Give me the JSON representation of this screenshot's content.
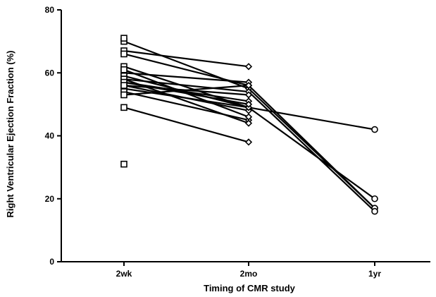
{
  "chart_data": {
    "type": "line",
    "title": "",
    "xlabel": "Timing of CMR study",
    "ylabel": "Right Ventricular Ejection Fraction (%)",
    "categories": [
      "2wk",
      "2mo",
      "1yr"
    ],
    "markers": [
      "square",
      "diamond",
      "circle"
    ],
    "ylim": [
      0,
      80
    ],
    "yticks": [
      0,
      20,
      40,
      60,
      80
    ],
    "grid": false,
    "legend": "none",
    "series": [
      {
        "values": [
          70,
          55,
          17
        ]
      },
      {
        "values": [
          67,
          62,
          null
        ]
      },
      {
        "values": [
          66,
          56,
          17
        ]
      },
      {
        "values": [
          62,
          49,
          null
        ]
      },
      {
        "values": [
          60,
          57,
          null
        ]
      },
      {
        "values": [
          59,
          49,
          20
        ]
      },
      {
        "values": [
          58,
          54,
          16
        ]
      },
      {
        "values": [
          57,
          51,
          null
        ]
      },
      {
        "values": [
          56,
          48,
          null
        ]
      },
      {
        "values": [
          55,
          49,
          42
        ]
      },
      {
        "values": [
          54,
          45,
          null
        ]
      },
      {
        "values": [
          53,
          56,
          null
        ]
      },
      {
        "values": [
          49,
          38,
          null
        ]
      },
      {
        "values": [
          71,
          null,
          null
        ]
      },
      {
        "values": [
          31,
          null,
          null
        ]
      },
      {
        "values": [
          61,
          46,
          null
        ]
      },
      {
        "values": [
          58,
          44,
          null
        ]
      },
      {
        "values": [
          57,
          50,
          null
        ]
      },
      {
        "values": [
          56,
          53,
          null
        ]
      }
    ]
  }
}
